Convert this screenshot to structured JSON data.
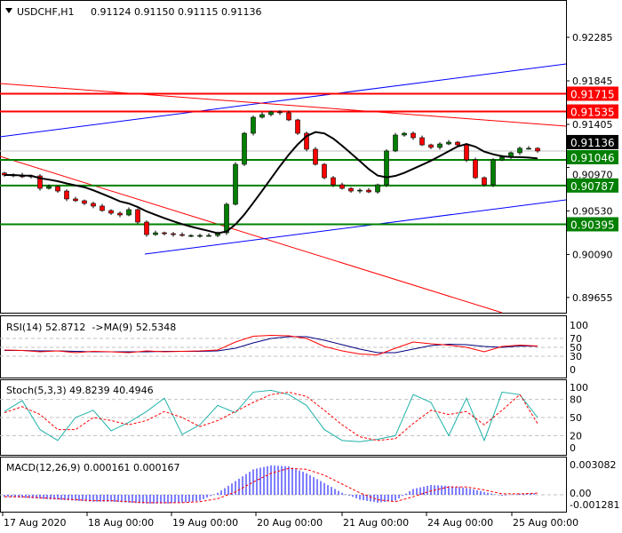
{
  "header": {
    "symbol_title": "USDCHF,H1",
    "ohlc": "0.91124 0.91150 0.91115 0.91136"
  },
  "colors": {
    "bull": "#008000",
    "bear": "#ff0000",
    "support": "#008000",
    "resistance": "#ff0000",
    "trend_blue": "#0000ff",
    "trend_red": "#ff0000",
    "ma": "#000000",
    "rsi": "#ff0000",
    "rsi_ma": "#000080",
    "stoch_main": "#20b2aa",
    "stoch_signal": "#ff0000",
    "macd_hist": "#0000ff",
    "macd_signal": "#ff0000",
    "current_price_bg": "#000000"
  },
  "chart_data": [
    {
      "type": "candlestick",
      "title": "USDCHF,H1",
      "ylim": [
        0.8945,
        0.925
      ],
      "y_ticks": [
        "0.92285",
        "0.91845",
        "0.91405",
        "0.90970",
        "0.90530",
        "0.90090",
        "0.89655"
      ],
      "y_tick_values": [
        0.92285,
        0.91845,
        0.91405,
        0.9097,
        0.9053,
        0.9009,
        0.89655
      ],
      "x_ticks": [
        {
          "label": "17 Aug 2020",
          "bar": 0
        },
        {
          "label": "18 Aug 00:00",
          "bar": 9.5
        },
        {
          "label": "19 Aug 00:00",
          "bar": 19
        },
        {
          "label": "20 Aug 00:00",
          "bar": 28.5
        },
        {
          "label": "21 Aug 00:00",
          "bar": 38.2
        },
        {
          "label": "24 Aug 00:00",
          "bar": 47.7
        },
        {
          "label": "25 Aug 00:00",
          "bar": 57.3
        }
      ],
      "closes": [
        0.90893,
        0.90893,
        0.90875,
        0.90884,
        0.90758,
        0.90776,
        0.90731,
        0.90651,
        0.90633,
        0.90606,
        0.90579,
        0.90534,
        0.90507,
        0.90489,
        0.90543,
        0.90417,
        0.90291,
        0.90309,
        0.903,
        0.90291,
        0.90282,
        0.90282,
        0.90282,
        0.90282,
        0.90309,
        0.90597,
        0.91001,
        0.91315,
        0.91477,
        0.91504,
        0.91531,
        0.91522,
        0.9145,
        0.91315,
        0.91154,
        0.91001,
        0.90866,
        0.90794,
        0.90758,
        0.90731,
        0.9074,
        0.90722,
        0.90794,
        0.91136,
        0.91297,
        0.91315,
        0.9127,
        0.91198,
        0.91172,
        0.91207,
        0.91225,
        0.91198,
        0.91046,
        0.90866,
        0.90794,
        0.91046,
        0.91073,
        0.91118,
        0.91163,
        0.91163,
        0.91136
      ],
      "current_price": "0.91136",
      "levels": [
        {
          "label": "0.91715",
          "value": 0.91715,
          "kind": "resistance"
        },
        {
          "label": "0.91535",
          "value": 0.91535,
          "kind": "resistance"
        },
        {
          "label": "0.91046",
          "value": 0.91046,
          "kind": "support"
        },
        {
          "label": "0.90787",
          "value": 0.90787,
          "kind": "support"
        },
        {
          "label": "0.90395",
          "value": 0.90395,
          "kind": "support"
        }
      ],
      "trendlines": [
        {
          "color": "blue",
          "from": {
            "bar": -0.5,
            "price": 0.91279
          },
          "to": {
            "bar": 63.2,
            "price": 0.92016
          }
        },
        {
          "color": "red",
          "from": {
            "bar": -0.5,
            "price": 0.91818
          },
          "to": {
            "bar": 63.2,
            "price": 0.91387
          }
        },
        {
          "color": "red",
          "from": {
            "bar": -0.5,
            "price": 0.91082
          },
          "to": {
            "bar": 56,
            "price": 0.89501
          }
        },
        {
          "color": "blue",
          "from": {
            "bar": 15.8,
            "price": 0.90094
          },
          "to": {
            "bar": 63.2,
            "price": 0.90642
          }
        }
      ]
    },
    {
      "type": "line",
      "title": "RSI(14) 52.8712  ->MA(9) 52.5348",
      "ylim": [
        0,
        100
      ],
      "y_ticks": [
        "100",
        "70",
        "50",
        "30",
        "0"
      ],
      "levels": [
        70,
        50,
        30
      ],
      "bar_step": 2,
      "series": [
        {
          "name": "RSI(14)",
          "values": [
            44,
            43,
            40,
            42,
            38,
            41,
            40,
            38,
            42,
            40,
            41,
            42,
            44,
            62,
            75,
            77,
            76,
            70,
            52,
            42,
            35,
            33,
            48,
            62,
            58,
            55,
            50,
            40,
            52,
            55,
            53
          ]
        },
        {
          "name": "MA(9)",
          "values": [
            43,
            43,
            42,
            42,
            41,
            40,
            40,
            40,
            40,
            41,
            41,
            41,
            42,
            48,
            60,
            70,
            74,
            74,
            66,
            56,
            46,
            38,
            38,
            46,
            54,
            57,
            56,
            52,
            50,
            53,
            52.5
          ]
        }
      ]
    },
    {
      "type": "line",
      "title": "Stoch(5,3,3) 49.8239 40.4946",
      "ylim": [
        0,
        100
      ],
      "y_ticks": [
        "100",
        "80",
        "50",
        "20",
        "0"
      ],
      "levels": [
        80,
        50,
        20
      ],
      "bar_step": 2,
      "series": [
        {
          "name": "main",
          "values": [
            60,
            78,
            30,
            12,
            50,
            62,
            28,
            42,
            60,
            82,
            22,
            38,
            70,
            58,
            92,
            95,
            88,
            70,
            30,
            12,
            10,
            14,
            20,
            88,
            75,
            20,
            82,
            12,
            92,
            88,
            50
          ]
        },
        {
          "name": "signal",
          "values": [
            58,
            68,
            55,
            30,
            30,
            50,
            45,
            38,
            45,
            60,
            50,
            35,
            45,
            60,
            75,
            88,
            92,
            85,
            62,
            38,
            18,
            12,
            15,
            40,
            62,
            55,
            60,
            38,
            62,
            88,
            40
          ]
        }
      ]
    },
    {
      "type": "bar",
      "title": "MACD(12,26,9) 0.000161 0.000167",
      "y_ticks": [
        "0.003082",
        "0.00",
        "-0.001281"
      ],
      "y_tick_values": [
        0.003082,
        0,
        -0.001281
      ],
      "bar_step": 2,
      "series": [
        {
          "name": "histogram",
          "values": [
            -0.0002,
            -0.0003,
            -0.0004,
            -0.0005,
            -0.0006,
            -0.0007,
            -0.0007,
            -0.0008,
            -0.0009,
            -0.0009,
            -0.0008,
            -0.0006,
            0.0002,
            0.0014,
            0.0026,
            0.003,
            0.0029,
            0.0022,
            0.0012,
            0.0002,
            -0.0005,
            -0.0008,
            -0.0006,
            0.0006,
            0.001,
            0.0009,
            0.0007,
            0.0003,
            -0.0001,
            0.0001,
            0.00016
          ]
        },
        {
          "name": "signal",
          "values": [
            -0.0002,
            -0.0002,
            -0.0003,
            -0.0004,
            -0.0005,
            -0.0006,
            -0.0006,
            -0.0007,
            -0.0008,
            -0.0008,
            -0.0008,
            -0.0007,
            -0.0004,
            0.0003,
            0.0013,
            0.0022,
            0.0027,
            0.0026,
            0.002,
            0.0011,
            0.0002,
            -0.0005,
            -0.0007,
            -0.0002,
            0.0004,
            0.0008,
            0.0008,
            0.0005,
            0.0001,
            0.0001,
            0.00017
          ]
        }
      ]
    }
  ]
}
